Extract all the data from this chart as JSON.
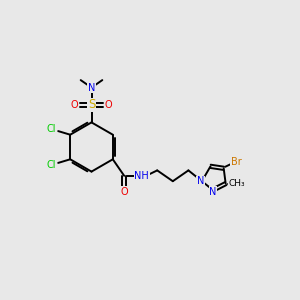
{
  "background_color": "#e8e8e8",
  "figsize": [
    3.0,
    3.0
  ],
  "dpi": 100,
  "colors": {
    "C": "#000000",
    "N": "#0000ee",
    "O": "#ee0000",
    "S": "#ccaa00",
    "Cl": "#00cc00",
    "Br": "#cc7700",
    "H": "#000000",
    "bond": "#000000"
  },
  "bond_lw": 1.4,
  "font_size": 7.0,
  "xlim": [
    0,
    10
  ],
  "ylim": [
    0,
    10
  ]
}
